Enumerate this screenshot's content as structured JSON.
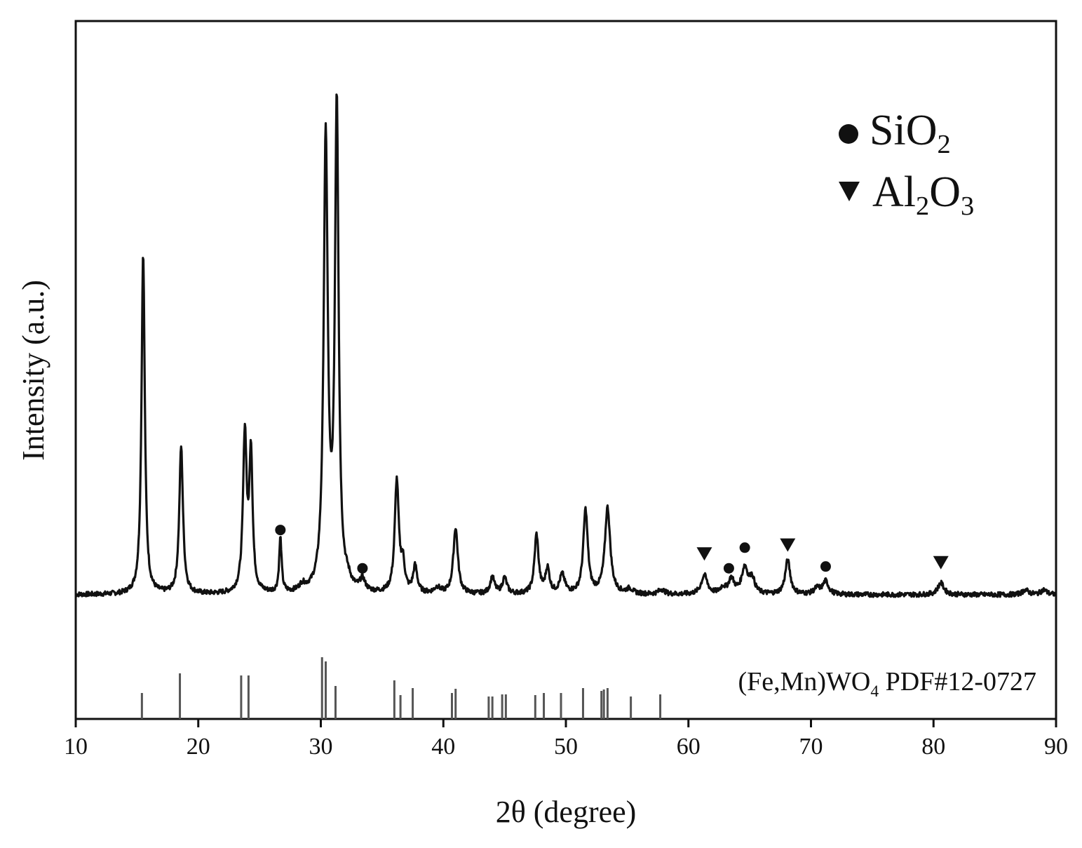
{
  "chart_data": {
    "type": "line",
    "title": "",
    "xlabel": "2θ (degree)",
    "ylabel": "Intensity (a.u.)",
    "xlim": [
      10,
      90
    ],
    "x_ticks": [
      10,
      20,
      30,
      40,
      50,
      60,
      70,
      80,
      90
    ],
    "y_ticks_shown": false,
    "grid": false,
    "series": [
      {
        "name": "",
        "baseline": 0,
        "peaks": [
          {
            "x": 15.5,
            "y": 580,
            "w": 0.16
          },
          {
            "x": 18.6,
            "y": 250,
            "w": 0.18
          },
          {
            "x": 23.8,
            "y": 268,
            "w": 0.18
          },
          {
            "x": 24.3,
            "y": 233,
            "w": 0.16
          },
          {
            "x": 26.7,
            "y": 92,
            "w": 0.12
          },
          {
            "x": 28.5,
            "y": 10,
            "w": 0.3
          },
          {
            "x": 30.4,
            "y": 765,
            "w": 0.2
          },
          {
            "x": 31.3,
            "y": 820,
            "w": 0.18
          },
          {
            "x": 32.2,
            "y": 12,
            "w": 0.3
          },
          {
            "x": 33.4,
            "y": 20,
            "w": 0.25
          },
          {
            "x": 36.2,
            "y": 190,
            "w": 0.2
          },
          {
            "x": 36.7,
            "y": 45,
            "w": 0.18
          },
          {
            "x": 37.7,
            "y": 45,
            "w": 0.2
          },
          {
            "x": 39.5,
            "y": 10,
            "w": 0.3
          },
          {
            "x": 41.0,
            "y": 112,
            "w": 0.22
          },
          {
            "x": 44.0,
            "y": 28,
            "w": 0.22
          },
          {
            "x": 45.0,
            "y": 27,
            "w": 0.22
          },
          {
            "x": 47.6,
            "y": 100,
            "w": 0.2
          },
          {
            "x": 48.5,
            "y": 42,
            "w": 0.2
          },
          {
            "x": 49.7,
            "y": 32,
            "w": 0.25
          },
          {
            "x": 51.6,
            "y": 142,
            "w": 0.22
          },
          {
            "x": 53.4,
            "y": 146,
            "w": 0.26
          },
          {
            "x": 55.2,
            "y": 8,
            "w": 0.3
          },
          {
            "x": 57.8,
            "y": 8,
            "w": 0.3
          },
          {
            "x": 61.3,
            "y": 32,
            "w": 0.3
          },
          {
            "x": 62.8,
            "y": 10,
            "w": 0.25
          },
          {
            "x": 63.5,
            "y": 25,
            "w": 0.28
          },
          {
            "x": 64.6,
            "y": 45,
            "w": 0.3
          },
          {
            "x": 65.2,
            "y": 25,
            "w": 0.25
          },
          {
            "x": 68.1,
            "y": 58,
            "w": 0.25
          },
          {
            "x": 70.5,
            "y": 10,
            "w": 0.3
          },
          {
            "x": 71.2,
            "y": 22,
            "w": 0.28
          },
          {
            "x": 80.6,
            "y": 20,
            "w": 0.3
          },
          {
            "x": 87.5,
            "y": 8,
            "w": 0.3
          },
          {
            "x": 89.0,
            "y": 8,
            "w": 0.3
          }
        ]
      }
    ],
    "markers": [
      {
        "x": 26.7,
        "phase": "SiO2",
        "y": 110
      },
      {
        "x": 33.4,
        "phase": "SiO2",
        "y": 45
      },
      {
        "x": 61.3,
        "phase": "Al2O3",
        "y": 70
      },
      {
        "x": 63.3,
        "phase": "SiO2",
        "y": 45
      },
      {
        "x": 64.6,
        "phase": "SiO2",
        "y": 80
      },
      {
        "x": 68.1,
        "phase": "Al2O3",
        "y": 85
      },
      {
        "x": 71.2,
        "phase": "SiO2",
        "y": 48
      },
      {
        "x": 80.6,
        "phase": "Al2O3",
        "y": 55
      }
    ],
    "reference": {
      "label_main": "(Fe,Mn)WO",
      "label_sub": "4",
      "label_tail": " PDF#12-0727",
      "lines": [
        {
          "x": 15.4,
          "h": 0.37
        },
        {
          "x": 18.5,
          "h": 0.65
        },
        {
          "x": 23.5,
          "h": 0.62
        },
        {
          "x": 24.1,
          "h": 0.62
        },
        {
          "x": 30.1,
          "h": 0.88
        },
        {
          "x": 30.4,
          "h": 0.82
        },
        {
          "x": 31.2,
          "h": 0.47
        },
        {
          "x": 36.0,
          "h": 0.55
        },
        {
          "x": 36.5,
          "h": 0.34
        },
        {
          "x": 37.5,
          "h": 0.44
        },
        {
          "x": 40.7,
          "h": 0.37
        },
        {
          "x": 41.0,
          "h": 0.43
        },
        {
          "x": 43.7,
          "h": 0.32
        },
        {
          "x": 44.0,
          "h": 0.32
        },
        {
          "x": 44.8,
          "h": 0.35
        },
        {
          "x": 45.1,
          "h": 0.35
        },
        {
          "x": 47.5,
          "h": 0.34
        },
        {
          "x": 48.2,
          "h": 0.37
        },
        {
          "x": 49.6,
          "h": 0.37
        },
        {
          "x": 51.4,
          "h": 0.44
        },
        {
          "x": 52.9,
          "h": 0.4
        },
        {
          "x": 53.1,
          "h": 0.42
        },
        {
          "x": 53.4,
          "h": 0.44
        },
        {
          "x": 55.3,
          "h": 0.32
        },
        {
          "x": 57.7,
          "h": 0.35
        }
      ]
    },
    "legend": {
      "placement": "top-right",
      "entries": [
        {
          "symbol": "circle",
          "text_main": "SiO",
          "text_sub": "2",
          "text_tail": ""
        },
        {
          "symbol": "triangle-down",
          "text_main": "Al",
          "text_sub": "2",
          "text_tail": "O",
          "text_sub2": "3"
        }
      ]
    }
  }
}
